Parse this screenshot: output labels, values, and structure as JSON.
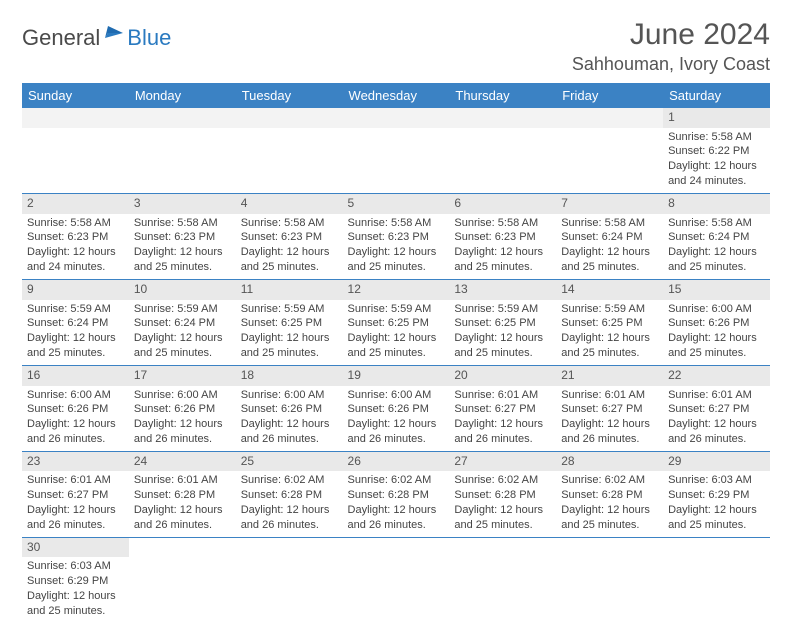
{
  "logo": {
    "text_dark": "General",
    "text_blue": "Blue"
  },
  "header": {
    "month_title": "June 2024",
    "location": "Sahhouman, Ivory Coast"
  },
  "colors": {
    "header_bg": "#3b82c4",
    "header_text": "#ffffff",
    "daynum_bg": "#e9e9e9",
    "blank_bg": "#f3f3f3",
    "border": "#3b82c4",
    "body_text": "#444",
    "title_text": "#555"
  },
  "fonts": {
    "title_size": 30,
    "location_size": 18,
    "dayhead_size": 13,
    "daynum_size": 12,
    "body_size": 11
  },
  "day_headers": [
    "Sunday",
    "Monday",
    "Tuesday",
    "Wednesday",
    "Thursday",
    "Friday",
    "Saturday"
  ],
  "weeks": [
    [
      {
        "blank": true
      },
      {
        "blank": true
      },
      {
        "blank": true
      },
      {
        "blank": true
      },
      {
        "blank": true
      },
      {
        "blank": true
      },
      {
        "n": "1",
        "sunrise": "Sunrise: 5:58 AM",
        "sunset": "Sunset: 6:22 PM",
        "daylight1": "Daylight: 12 hours",
        "daylight2": "and 24 minutes."
      }
    ],
    [
      {
        "n": "2",
        "sunrise": "Sunrise: 5:58 AM",
        "sunset": "Sunset: 6:23 PM",
        "daylight1": "Daylight: 12 hours",
        "daylight2": "and 24 minutes."
      },
      {
        "n": "3",
        "sunrise": "Sunrise: 5:58 AM",
        "sunset": "Sunset: 6:23 PM",
        "daylight1": "Daylight: 12 hours",
        "daylight2": "and 25 minutes."
      },
      {
        "n": "4",
        "sunrise": "Sunrise: 5:58 AM",
        "sunset": "Sunset: 6:23 PM",
        "daylight1": "Daylight: 12 hours",
        "daylight2": "and 25 minutes."
      },
      {
        "n": "5",
        "sunrise": "Sunrise: 5:58 AM",
        "sunset": "Sunset: 6:23 PM",
        "daylight1": "Daylight: 12 hours",
        "daylight2": "and 25 minutes."
      },
      {
        "n": "6",
        "sunrise": "Sunrise: 5:58 AM",
        "sunset": "Sunset: 6:23 PM",
        "daylight1": "Daylight: 12 hours",
        "daylight2": "and 25 minutes."
      },
      {
        "n": "7",
        "sunrise": "Sunrise: 5:58 AM",
        "sunset": "Sunset: 6:24 PM",
        "daylight1": "Daylight: 12 hours",
        "daylight2": "and 25 minutes."
      },
      {
        "n": "8",
        "sunrise": "Sunrise: 5:58 AM",
        "sunset": "Sunset: 6:24 PM",
        "daylight1": "Daylight: 12 hours",
        "daylight2": "and 25 minutes."
      }
    ],
    [
      {
        "n": "9",
        "sunrise": "Sunrise: 5:59 AM",
        "sunset": "Sunset: 6:24 PM",
        "daylight1": "Daylight: 12 hours",
        "daylight2": "and 25 minutes."
      },
      {
        "n": "10",
        "sunrise": "Sunrise: 5:59 AM",
        "sunset": "Sunset: 6:24 PM",
        "daylight1": "Daylight: 12 hours",
        "daylight2": "and 25 minutes."
      },
      {
        "n": "11",
        "sunrise": "Sunrise: 5:59 AM",
        "sunset": "Sunset: 6:25 PM",
        "daylight1": "Daylight: 12 hours",
        "daylight2": "and 25 minutes."
      },
      {
        "n": "12",
        "sunrise": "Sunrise: 5:59 AM",
        "sunset": "Sunset: 6:25 PM",
        "daylight1": "Daylight: 12 hours",
        "daylight2": "and 25 minutes."
      },
      {
        "n": "13",
        "sunrise": "Sunrise: 5:59 AM",
        "sunset": "Sunset: 6:25 PM",
        "daylight1": "Daylight: 12 hours",
        "daylight2": "and 25 minutes."
      },
      {
        "n": "14",
        "sunrise": "Sunrise: 5:59 AM",
        "sunset": "Sunset: 6:25 PM",
        "daylight1": "Daylight: 12 hours",
        "daylight2": "and 25 minutes."
      },
      {
        "n": "15",
        "sunrise": "Sunrise: 6:00 AM",
        "sunset": "Sunset: 6:26 PM",
        "daylight1": "Daylight: 12 hours",
        "daylight2": "and 25 minutes."
      }
    ],
    [
      {
        "n": "16",
        "sunrise": "Sunrise: 6:00 AM",
        "sunset": "Sunset: 6:26 PM",
        "daylight1": "Daylight: 12 hours",
        "daylight2": "and 26 minutes."
      },
      {
        "n": "17",
        "sunrise": "Sunrise: 6:00 AM",
        "sunset": "Sunset: 6:26 PM",
        "daylight1": "Daylight: 12 hours",
        "daylight2": "and 26 minutes."
      },
      {
        "n": "18",
        "sunrise": "Sunrise: 6:00 AM",
        "sunset": "Sunset: 6:26 PM",
        "daylight1": "Daylight: 12 hours",
        "daylight2": "and 26 minutes."
      },
      {
        "n": "19",
        "sunrise": "Sunrise: 6:00 AM",
        "sunset": "Sunset: 6:26 PM",
        "daylight1": "Daylight: 12 hours",
        "daylight2": "and 26 minutes."
      },
      {
        "n": "20",
        "sunrise": "Sunrise: 6:01 AM",
        "sunset": "Sunset: 6:27 PM",
        "daylight1": "Daylight: 12 hours",
        "daylight2": "and 26 minutes."
      },
      {
        "n": "21",
        "sunrise": "Sunrise: 6:01 AM",
        "sunset": "Sunset: 6:27 PM",
        "daylight1": "Daylight: 12 hours",
        "daylight2": "and 26 minutes."
      },
      {
        "n": "22",
        "sunrise": "Sunrise: 6:01 AM",
        "sunset": "Sunset: 6:27 PM",
        "daylight1": "Daylight: 12 hours",
        "daylight2": "and 26 minutes."
      }
    ],
    [
      {
        "n": "23",
        "sunrise": "Sunrise: 6:01 AM",
        "sunset": "Sunset: 6:27 PM",
        "daylight1": "Daylight: 12 hours",
        "daylight2": "and 26 minutes."
      },
      {
        "n": "24",
        "sunrise": "Sunrise: 6:01 AM",
        "sunset": "Sunset: 6:28 PM",
        "daylight1": "Daylight: 12 hours",
        "daylight2": "and 26 minutes."
      },
      {
        "n": "25",
        "sunrise": "Sunrise: 6:02 AM",
        "sunset": "Sunset: 6:28 PM",
        "daylight1": "Daylight: 12 hours",
        "daylight2": "and 26 minutes."
      },
      {
        "n": "26",
        "sunrise": "Sunrise: 6:02 AM",
        "sunset": "Sunset: 6:28 PM",
        "daylight1": "Daylight: 12 hours",
        "daylight2": "and 26 minutes."
      },
      {
        "n": "27",
        "sunrise": "Sunrise: 6:02 AM",
        "sunset": "Sunset: 6:28 PM",
        "daylight1": "Daylight: 12 hours",
        "daylight2": "and 25 minutes."
      },
      {
        "n": "28",
        "sunrise": "Sunrise: 6:02 AM",
        "sunset": "Sunset: 6:28 PM",
        "daylight1": "Daylight: 12 hours",
        "daylight2": "and 25 minutes."
      },
      {
        "n": "29",
        "sunrise": "Sunrise: 6:03 AM",
        "sunset": "Sunset: 6:29 PM",
        "daylight1": "Daylight: 12 hours",
        "daylight2": "and 25 minutes."
      }
    ],
    [
      {
        "n": "30",
        "sunrise": "Sunrise: 6:03 AM",
        "sunset": "Sunset: 6:29 PM",
        "daylight1": "Daylight: 12 hours",
        "daylight2": "and 25 minutes."
      },
      {
        "blank": true
      },
      {
        "blank": true
      },
      {
        "blank": true
      },
      {
        "blank": true
      },
      {
        "blank": true
      },
      {
        "blank": true
      }
    ]
  ]
}
